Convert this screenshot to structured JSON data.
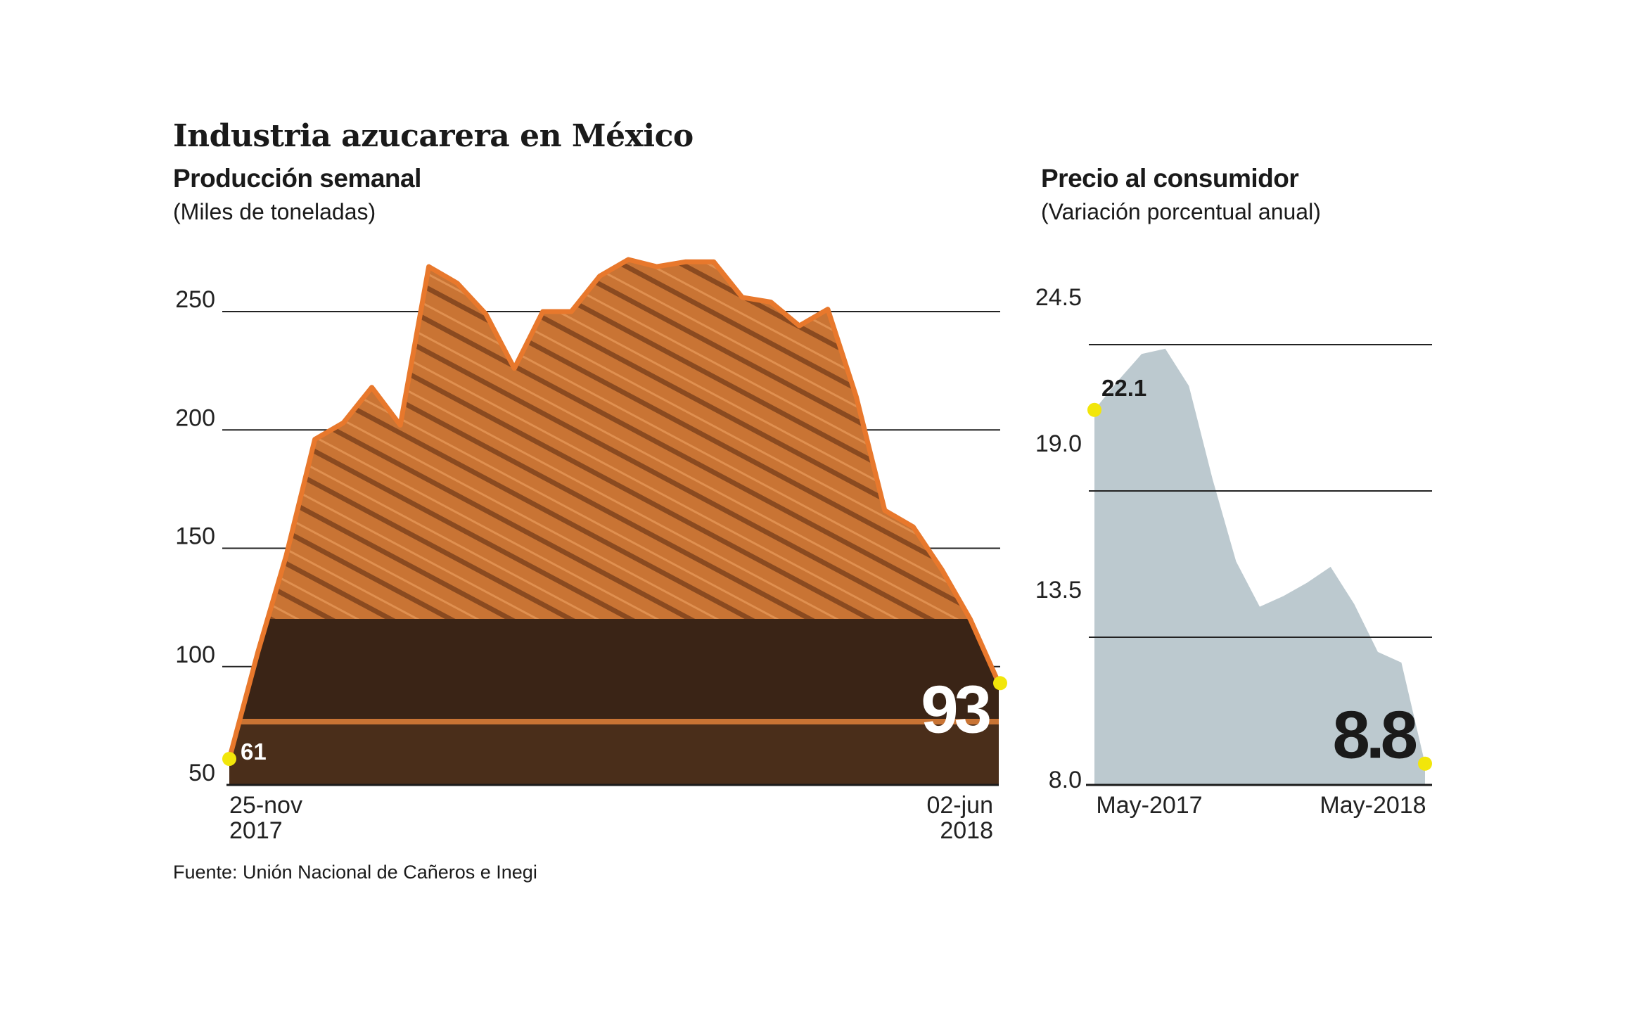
{
  "header": {
    "title": "Industria azucarera en México",
    "source": "Fuente: Unión Nacional de Cañeros e Inegi"
  },
  "production": {
    "title": "Producción semanal",
    "unit": "(Miles de toneladas)"
  },
  "price": {
    "title": "Precio al consumidor",
    "unit": "(Variación porcentual anual)"
  },
  "colors": {
    "orange_line": "#e8782c",
    "orange_fill": "#c97434",
    "dark_fill": "#3a2416",
    "gray_area": "#bcc9cf",
    "marker": "#f2e60a",
    "grid": "#222222"
  },
  "chart_data": [
    {
      "type": "area",
      "ylim": [
        50,
        275
      ],
      "yticks": [
        50,
        100,
        150,
        200,
        250
      ],
      "x_start_label": [
        "25-nov",
        "2017"
      ],
      "x_end_label": [
        "02-jun",
        "2018"
      ],
      "values": [
        61,
        106,
        147,
        196,
        203,
        218,
        202,
        269,
        262,
        249,
        226,
        250,
        250,
        265,
        272,
        269,
        271,
        271,
        256,
        254,
        244,
        251,
        214,
        166,
        159,
        141,
        120,
        93
      ],
      "start_label": "61",
      "end_label": "93"
    },
    {
      "type": "area",
      "ylim": [
        8.0,
        26.5
      ],
      "yticks": [
        8.0,
        13.5,
        19.0,
        24.5
      ],
      "x_start_label": "May-2017",
      "x_end_label": "May-2018",
      "values": [
        22.1,
        23.2,
        24.2,
        24.4,
        23.0,
        19.5,
        16.4,
        14.7,
        15.1,
        15.6,
        16.2,
        14.8,
        13.0,
        12.6,
        8.8
      ],
      "start_label": "22.1",
      "end_label": "8.8"
    }
  ]
}
